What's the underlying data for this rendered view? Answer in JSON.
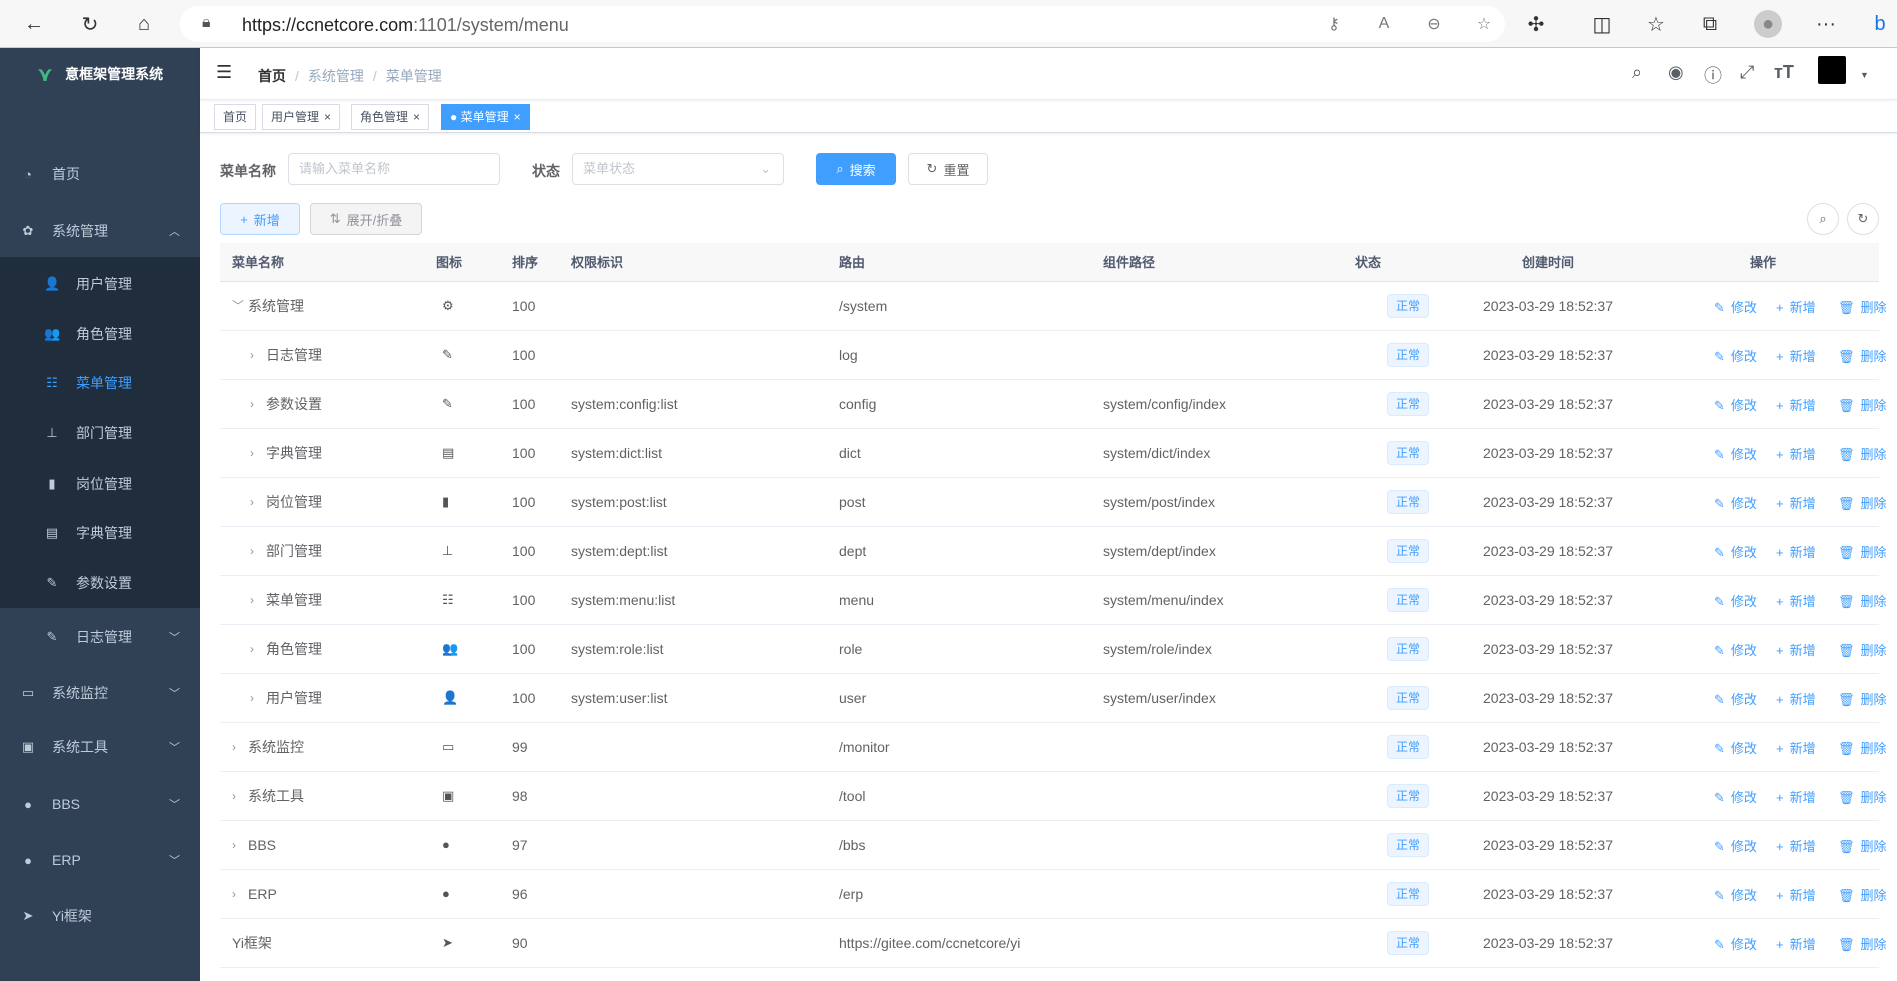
{
  "browser": {
    "url_host": "https://ccnetcore.com",
    "url_path": ":1101/system/menu"
  },
  "sidebar": {
    "title": "意框架管理系统",
    "items": [
      {
        "label": "首页",
        "icon": "dashboard-icon",
        "glyph": "◔",
        "level": 0
      },
      {
        "label": "系统管理",
        "icon": "gear-icon",
        "glyph": "✿",
        "level": 0,
        "arrow": "︿",
        "open": true
      },
      {
        "label": "用户管理",
        "icon": "user-icon",
        "glyph": "👤",
        "level": 1
      },
      {
        "label": "角色管理",
        "icon": "peoples-icon",
        "glyph": "👥",
        "level": 1
      },
      {
        "label": "菜单管理",
        "icon": "tree-table-icon",
        "glyph": "☷",
        "level": 1,
        "active": true
      },
      {
        "label": "部门管理",
        "icon": "tree-icon",
        "glyph": "⊥",
        "level": 1
      },
      {
        "label": "岗位管理",
        "icon": "post-icon",
        "glyph": "▮",
        "level": 1
      },
      {
        "label": "字典管理",
        "icon": "dict-icon",
        "glyph": "▤",
        "level": 1
      },
      {
        "label": "参数设置",
        "icon": "edit-icon",
        "glyph": "✎",
        "level": 1
      },
      {
        "label": "日志管理",
        "icon": "log-icon",
        "glyph": "✎",
        "level": 1,
        "arrow": "﹀"
      },
      {
        "label": "系统监控",
        "icon": "monitor-icon",
        "glyph": "▭",
        "level": 0,
        "arrow": "﹀"
      },
      {
        "label": "系统工具",
        "icon": "tool-icon",
        "glyph": "▣",
        "level": 0,
        "arrow": "﹀"
      },
      {
        "label": "BBS",
        "icon": "globe-icon",
        "glyph": "●",
        "level": 0,
        "arrow": "﹀"
      },
      {
        "label": "ERP",
        "icon": "globe-icon",
        "glyph": "●",
        "level": 0,
        "arrow": "﹀"
      },
      {
        "label": "Yi框架",
        "icon": "send-icon",
        "glyph": "➤",
        "level": 0
      }
    ]
  },
  "breadcrumb": [
    "首页",
    "系统管理",
    "菜单管理"
  ],
  "breadcrumb_sep": "/",
  "tags": [
    {
      "label": "首页"
    },
    {
      "label": "用户管理",
      "close": "×"
    },
    {
      "label": "角色管理",
      "close": "×"
    },
    {
      "label": "● 菜单管理",
      "close": "×",
      "active": true
    }
  ],
  "search": {
    "name_label": "菜单名称",
    "name_placeholder": "请输入菜单名称",
    "status_label": "状态",
    "status_placeholder": "菜单状态",
    "search_btn": "搜索",
    "reset_btn": "重置"
  },
  "toolbar": {
    "add": "新增",
    "expand": "展开/折叠"
  },
  "table": {
    "headers": [
      "菜单名称",
      "图标",
      "排序",
      "权限标识",
      "路由",
      "组件路径",
      "状态",
      "创建时间",
      "操作"
    ],
    "ops": {
      "edit": "修改",
      "add": "新增",
      "delete": "删除"
    },
    "rows": [
      {
        "name": "系统管理",
        "indent": 0,
        "expand": "﹀",
        "icon": "⚙",
        "sort": "100",
        "perm": "",
        "route": "/system",
        "component": "",
        "status": "正常",
        "created": "2023-03-29 18:52:37"
      },
      {
        "name": "日志管理",
        "indent": 1,
        "expand": "›",
        "icon": "✎",
        "sort": "100",
        "perm": "",
        "route": "log",
        "component": "",
        "status": "正常",
        "created": "2023-03-29 18:52:37"
      },
      {
        "name": "参数设置",
        "indent": 1,
        "expand": "›",
        "icon": "✎",
        "sort": "100",
        "perm": "system:config:list",
        "route": "config",
        "component": "system/config/index",
        "status": "正常",
        "created": "2023-03-29 18:52:37"
      },
      {
        "name": "字典管理",
        "indent": 1,
        "expand": "›",
        "icon": "▤",
        "sort": "100",
        "perm": "system:dict:list",
        "route": "dict",
        "component": "system/dict/index",
        "status": "正常",
        "created": "2023-03-29 18:52:37"
      },
      {
        "name": "岗位管理",
        "indent": 1,
        "expand": "›",
        "icon": "▮",
        "sort": "100",
        "perm": "system:post:list",
        "route": "post",
        "component": "system/post/index",
        "status": "正常",
        "created": "2023-03-29 18:52:37"
      },
      {
        "name": "部门管理",
        "indent": 1,
        "expand": "›",
        "icon": "⊥",
        "sort": "100",
        "perm": "system:dept:list",
        "route": "dept",
        "component": "system/dept/index",
        "status": "正常",
        "created": "2023-03-29 18:52:37"
      },
      {
        "name": "菜单管理",
        "indent": 1,
        "expand": "›",
        "icon": "☷",
        "sort": "100",
        "perm": "system:menu:list",
        "route": "menu",
        "component": "system/menu/index",
        "status": "正常",
        "created": "2023-03-29 18:52:37"
      },
      {
        "name": "角色管理",
        "indent": 1,
        "expand": "›",
        "icon": "👥",
        "sort": "100",
        "perm": "system:role:list",
        "route": "role",
        "component": "system/role/index",
        "status": "正常",
        "created": "2023-03-29 18:52:37"
      },
      {
        "name": "用户管理",
        "indent": 1,
        "expand": "›",
        "icon": "👤",
        "sort": "100",
        "perm": "system:user:list",
        "route": "user",
        "component": "system/user/index",
        "status": "正常",
        "created": "2023-03-29 18:52:37"
      },
      {
        "name": "系统监控",
        "indent": 0,
        "expand": "›",
        "icon": "▭",
        "sort": "99",
        "perm": "",
        "route": "/monitor",
        "component": "",
        "status": "正常",
        "created": "2023-03-29 18:52:37"
      },
      {
        "name": "系统工具",
        "indent": 0,
        "expand": "›",
        "icon": "▣",
        "sort": "98",
        "perm": "",
        "route": "/tool",
        "component": "",
        "status": "正常",
        "created": "2023-03-29 18:52:37"
      },
      {
        "name": "BBS",
        "indent": 0,
        "expand": "›",
        "icon": "●",
        "sort": "97",
        "perm": "",
        "route": "/bbs",
        "component": "",
        "status": "正常",
        "created": "2023-03-29 18:52:37"
      },
      {
        "name": "ERP",
        "indent": 0,
        "expand": "›",
        "icon": "●",
        "sort": "96",
        "perm": "",
        "route": "/erp",
        "component": "",
        "status": "正常",
        "created": "2023-03-29 18:52:37"
      },
      {
        "name": "Yi框架",
        "indent": -1,
        "expand": "",
        "icon": "➤",
        "sort": "90",
        "perm": "",
        "route": "https://gitee.com/ccnetcore/yi",
        "component": "",
        "status": "正常",
        "created": "2023-03-29 18:52:37"
      }
    ]
  },
  "colors": {
    "primary": "#409eff",
    "sidebar": "#304156",
    "submenu": "#1f2d3d"
  }
}
